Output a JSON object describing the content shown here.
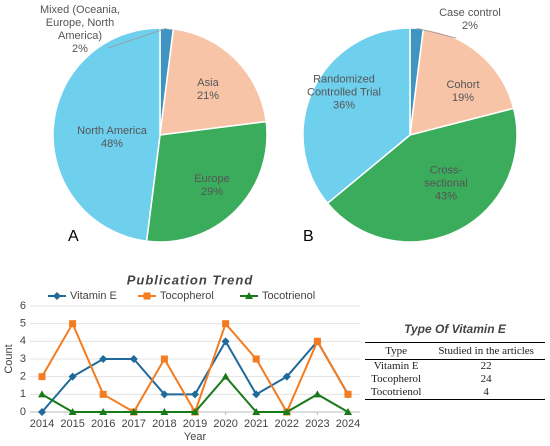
{
  "chart_data": [
    {
      "type": "pie",
      "panel": "A",
      "categories": [
        "Mixed (Oceania, Europe, North America)",
        "Asia",
        "Europe",
        "North America"
      ],
      "values": [
        2,
        21,
        29,
        48
      ],
      "value_labels": [
        "2%",
        "21%",
        "29%",
        "48%"
      ],
      "colors": [
        "#3f94c2",
        "#f8c4a8",
        "#3bab5c",
        "#6fd0ee"
      ]
    },
    {
      "type": "pie",
      "panel": "B",
      "categories": [
        "Case control",
        "Cohort",
        "Cross-sectional",
        "Randomized Controlled Trial"
      ],
      "values": [
        2,
        19,
        43,
        36
      ],
      "value_labels": [
        "2%",
        "19%",
        "43%",
        "36%"
      ],
      "colors": [
        "#3f94c2",
        "#f8c4a8",
        "#3bab5c",
        "#6fd0ee"
      ]
    },
    {
      "type": "line",
      "title": "Publication Trend",
      "xlabel": "Year",
      "ylabel": "Count",
      "x": [
        2014,
        2015,
        2016,
        2017,
        2018,
        2019,
        2020,
        2021,
        2022,
        2023,
        2024
      ],
      "xlim": [
        2014,
        2024
      ],
      "xticks": [
        2014,
        2015,
        2016,
        2017,
        2018,
        2019,
        2020,
        2021,
        2022,
        2023,
        2024
      ],
      "ylim": [
        0,
        6
      ],
      "yticks": [
        0,
        1,
        2,
        3,
        4,
        5,
        6
      ],
      "grid": true,
      "legend": "top",
      "series": [
        {
          "name": "Vitamin E",
          "color": "#1f6a99",
          "marker": "diamond",
          "values": [
            0,
            2,
            3,
            3,
            1,
            1,
            4,
            1,
            2,
            4,
            1
          ]
        },
        {
          "name": "Tocopherol",
          "color": "#f47b20",
          "marker": "square",
          "values": [
            2,
            5,
            1,
            0,
            3,
            0,
            5,
            3,
            0,
            4,
            1
          ]
        },
        {
          "name": "Tocotrienol",
          "color": "#1a7a1a",
          "marker": "triangle",
          "values": [
            1,
            0,
            0,
            0,
            0,
            0,
            2,
            0,
            0,
            1,
            0
          ]
        }
      ]
    }
  ],
  "table": {
    "title": "Type Of Vitamin E",
    "header": [
      "Type",
      "Studied in the articles"
    ],
    "rows": [
      [
        "Vitamin E",
        "22"
      ],
      [
        "Tocopherol",
        "24"
      ],
      [
        "Tocotrienol",
        "4"
      ]
    ]
  }
}
